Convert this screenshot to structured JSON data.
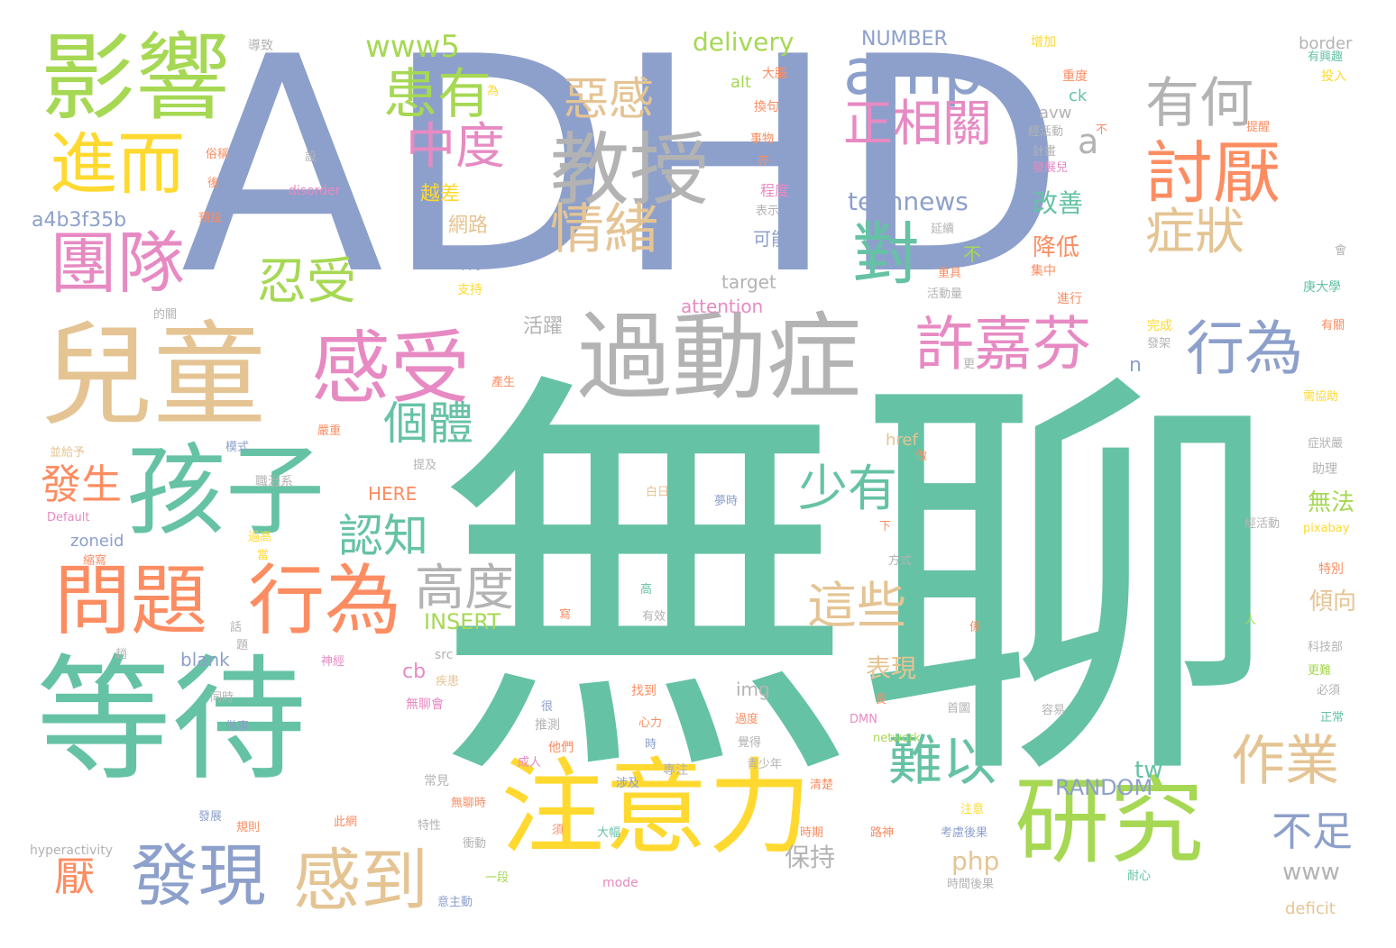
{
  "palette": {
    "teal": "#66c2a5",
    "periwinkle": "#8da0cb",
    "orange": "#fc8d62",
    "pink": "#e78ac3",
    "lime": "#a6d854",
    "yellow": "#ffd92f",
    "tan": "#e5c494",
    "grey": "#b3b3b3"
  },
  "words": [
    {
      "text": "無聊",
      "color": "teal"
    },
    {
      "text": "ADHD",
      "color": "periwinkle"
    },
    {
      "text": "兒童",
      "color": "tan"
    },
    {
      "text": "等待",
      "color": "teal"
    },
    {
      "text": "注意力",
      "color": "yellow"
    },
    {
      "text": "研究",
      "color": "lime"
    },
    {
      "text": "過動症",
      "color": "grey"
    },
    {
      "text": "影響",
      "color": "lime"
    },
    {
      "text": "孩子",
      "color": "teal"
    },
    {
      "text": "感受",
      "color": "pink"
    },
    {
      "text": "教授",
      "color": "grey"
    },
    {
      "text": "問題",
      "color": "orange"
    },
    {
      "text": "行為",
      "color": "orange"
    },
    {
      "text": "amp",
      "color": "periwinkle"
    },
    {
      "text": "團隊",
      "color": "pink"
    },
    {
      "text": "進而",
      "color": "yellow"
    },
    {
      "text": "許嘉芬",
      "color": "pink"
    },
    {
      "text": "行為",
      "color": "periwinkle"
    },
    {
      "text": "討厭",
      "color": "orange"
    },
    {
      "text": "有何",
      "color": "grey"
    },
    {
      "text": "發現",
      "color": "periwinkle"
    },
    {
      "text": "感到",
      "color": "tan"
    },
    {
      "text": "患有",
      "color": "lime"
    },
    {
      "text": "對",
      "color": "teal"
    },
    {
      "text": "情緒",
      "color": "tan"
    },
    {
      "text": "症狀",
      "color": "tan"
    },
    {
      "text": "作業",
      "color": "tan"
    },
    {
      "text": "中度",
      "color": "pink"
    },
    {
      "text": "正相關",
      "color": "pink"
    },
    {
      "text": "惡感",
      "color": "tan"
    },
    {
      "text": "難以",
      "color": "teal"
    },
    {
      "text": "少有",
      "color": "teal"
    },
    {
      "text": "這些",
      "color": "tan"
    },
    {
      "text": "認知",
      "color": "teal"
    },
    {
      "text": "高度",
      "color": "grey"
    },
    {
      "text": "忍受",
      "color": "lime"
    },
    {
      "text": "個體",
      "color": "teal"
    },
    {
      "text": "發生",
      "color": "orange"
    },
    {
      "text": "www5",
      "color": "lime"
    },
    {
      "text": "不足",
      "color": "periwinkle"
    },
    {
      "text": "厭",
      "color": "orange"
    },
    {
      "text": "technews",
      "color": "periwinkle"
    },
    {
      "text": "delivery",
      "color": "lime"
    },
    {
      "text": "NUMBER",
      "color": "periwinkle"
    },
    {
      "text": "RANDOM",
      "color": "periwinkle"
    },
    {
      "text": "INSERT",
      "color": "lime"
    },
    {
      "text": "a4b3f35b",
      "color": "periwinkle"
    },
    {
      "text": "表現",
      "color": "tan"
    },
    {
      "text": "改善",
      "color": "teal"
    },
    {
      "text": "降低",
      "color": "orange"
    },
    {
      "text": "無法",
      "color": "lime"
    },
    {
      "text": "傾向",
      "color": "tan"
    },
    {
      "text": "保持",
      "color": "grey"
    },
    {
      "text": "www",
      "color": "grey"
    },
    {
      "text": "php",
      "color": "tan"
    },
    {
      "text": "tw",
      "color": "teal"
    },
    {
      "text": "a",
      "color": "grey"
    },
    {
      "text": "n",
      "color": "periwinkle"
    },
    {
      "text": "cb",
      "color": "pink"
    },
    {
      "text": "attention",
      "color": "pink"
    },
    {
      "text": "target",
      "color": "grey"
    },
    {
      "text": "HERE",
      "color": "orange"
    },
    {
      "text": "zoneid",
      "color": "periwinkle"
    },
    {
      "text": "blank",
      "color": "periwinkle"
    },
    {
      "text": "img",
      "color": "grey"
    },
    {
      "text": "href",
      "color": "tan"
    },
    {
      "text": "alt",
      "color": "lime"
    },
    {
      "text": "avw",
      "color": "grey"
    },
    {
      "text": "ck",
      "color": "teal"
    },
    {
      "text": "border",
      "color": "grey"
    },
    {
      "text": "deficit",
      "color": "tan"
    },
    {
      "text": "disorder",
      "color": "pink"
    },
    {
      "text": "hyperactivity",
      "color": "grey"
    },
    {
      "text": "Default",
      "color": "pink"
    },
    {
      "text": "network",
      "color": "lime"
    },
    {
      "text": "mode",
      "color": "pink"
    },
    {
      "text": "src",
      "color": "grey"
    },
    {
      "text": "pixabay",
      "color": "yellow"
    },
    {
      "text": "DMN",
      "color": "pink"
    },
    {
      "text": "網路",
      "color": "tan"
    },
    {
      "text": "越差",
      "color": "yellow"
    },
    {
      "text": "可能",
      "color": "periwinkle"
    },
    {
      "text": "活躍",
      "color": "grey"
    },
    {
      "text": "不",
      "color": "lime"
    },
    {
      "text": "導致",
      "color": "grey"
    },
    {
      "text": "大腦",
      "color": "orange"
    },
    {
      "text": "換句",
      "color": "orange"
    },
    {
      "text": "事物",
      "color": "orange"
    },
    {
      "text": "程度",
      "color": "pink"
    },
    {
      "text": "表示",
      "color": "grey"
    },
    {
      "text": "科學",
      "color": "periwinkle"
    },
    {
      "text": "支持",
      "color": "yellow"
    },
    {
      "text": "延續",
      "color": "grey"
    },
    {
      "text": "重具",
      "color": "orange"
    },
    {
      "text": "活動量",
      "color": "grey"
    },
    {
      "text": "集中",
      "color": "orange"
    },
    {
      "text": "進行",
      "color": "orange"
    },
    {
      "text": "增加",
      "color": "yellow"
    },
    {
      "text": "重度",
      "color": "orange"
    },
    {
      "text": "經活動",
      "color": "grey"
    },
    {
      "text": "計畫",
      "color": "grey"
    },
    {
      "text": "發展兒",
      "color": "pink"
    },
    {
      "text": "有興趣",
      "color": "teal"
    },
    {
      "text": "投入",
      "color": "yellow"
    },
    {
      "text": "提醒",
      "color": "orange"
    },
    {
      "text": "庚大學",
      "color": "teal"
    },
    {
      "text": "完成",
      "color": "yellow"
    },
    {
      "text": "發架",
      "color": "grey"
    },
    {
      "text": "有關",
      "color": "orange"
    },
    {
      "text": "需協助",
      "color": "yellow"
    },
    {
      "text": "症狀嚴",
      "color": "grey"
    },
    {
      "text": "助理",
      "color": "grey"
    },
    {
      "text": "特別",
      "color": "orange"
    },
    {
      "text": "來源",
      "color": "teal"
    },
    {
      "text": "經活動",
      "color": "grey"
    },
    {
      "text": "科技部",
      "color": "grey"
    },
    {
      "text": "更難",
      "color": "lime"
    },
    {
      "text": "必須",
      "color": "grey"
    },
    {
      "text": "正常",
      "color": "teal"
    },
    {
      "text": "容易",
      "color": "grey"
    },
    {
      "text": "首圖",
      "color": "grey"
    },
    {
      "text": "耐心",
      "color": "teal"
    },
    {
      "text": "時間後果",
      "color": "grey"
    },
    {
      "text": "考慮後果",
      "color": "periwinkle"
    },
    {
      "text": "時期",
      "color": "orange"
    },
    {
      "text": "路神",
      "color": "orange"
    },
    {
      "text": "注意",
      "color": "yellow"
    },
    {
      "text": "清楚",
      "color": "orange"
    },
    {
      "text": "衝動",
      "color": "grey"
    },
    {
      "text": "一段",
      "color": "lime"
    },
    {
      "text": "意主動",
      "color": "periwinkle"
    },
    {
      "text": "大幅",
      "color": "teal"
    },
    {
      "text": "須",
      "color": "orange"
    },
    {
      "text": "特性",
      "color": "grey"
    },
    {
      "text": "此網",
      "color": "orange"
    },
    {
      "text": "規則",
      "color": "orange"
    },
    {
      "text": "發展",
      "color": "periwinkle"
    },
    {
      "text": "常見",
      "color": "grey"
    },
    {
      "text": "無聊時",
      "color": "orange"
    },
    {
      "text": "涉及",
      "color": "periwinkle"
    },
    {
      "text": "專注",
      "color": "grey"
    },
    {
      "text": "青少年",
      "color": "grey"
    },
    {
      "text": "覺得",
      "color": "grey"
    },
    {
      "text": "過度",
      "color": "orange"
    },
    {
      "text": "心力",
      "color": "orange"
    },
    {
      "text": "時",
      "color": "periwinkle"
    },
    {
      "text": "他們",
      "color": "orange"
    },
    {
      "text": "成人",
      "color": "pink"
    },
    {
      "text": "推測",
      "color": "grey"
    },
    {
      "text": "很",
      "color": "periwinkle"
    },
    {
      "text": "無聊會",
      "color": "pink"
    },
    {
      "text": "疾患",
      "color": "tan"
    },
    {
      "text": "找到",
      "color": "orange"
    },
    {
      "text": "做事",
      "color": "periwinkle"
    },
    {
      "text": "同時",
      "color": "grey"
    },
    {
      "text": "神經",
      "color": "pink"
    },
    {
      "text": "趟",
      "color": "grey"
    },
    {
      "text": "長",
      "color": "orange"
    },
    {
      "text": "有效",
      "color": "grey"
    },
    {
      "text": "高",
      "color": "teal"
    },
    {
      "text": "方式",
      "color": "grey"
    },
    {
      "text": "下",
      "color": "orange"
    },
    {
      "text": "夢時",
      "color": "periwinkle"
    },
    {
      "text": "白日",
      "color": "tan"
    },
    {
      "text": "職治系",
      "color": "grey"
    },
    {
      "text": "提及",
      "color": "grey"
    },
    {
      "text": "模式",
      "color": "periwinkle"
    },
    {
      "text": "並給予",
      "color": "tan"
    },
    {
      "text": "嚴重",
      "color": "orange"
    },
    {
      "text": "產生",
      "color": "orange"
    },
    {
      "text": "的關",
      "color": "grey"
    },
    {
      "text": "過高",
      "color": "yellow"
    },
    {
      "text": "當",
      "color": "yellow"
    },
    {
      "text": "縮寫",
      "color": "orange"
    },
    {
      "text": "做",
      "color": "orange"
    },
    {
      "text": "寫",
      "color": "orange"
    },
    {
      "text": "係",
      "color": "orange"
    },
    {
      "text": "人",
      "color": "lime"
    },
    {
      "text": "預設",
      "color": "orange"
    },
    {
      "text": "俗稱",
      "color": "orange"
    },
    {
      "text": "後",
      "color": "orange"
    },
    {
      "text": "設",
      "color": "grey"
    },
    {
      "text": "為",
      "color": "yellow"
    },
    {
      "text": "亦",
      "color": "orange"
    },
    {
      "text": "會",
      "color": "grey"
    },
    {
      "text": "更",
      "color": "grey"
    },
    {
      "text": "題",
      "color": "grey"
    },
    {
      "text": "話",
      "color": "grey"
    },
    {
      "text": "不",
      "color": "orange"
    }
  ]
}
